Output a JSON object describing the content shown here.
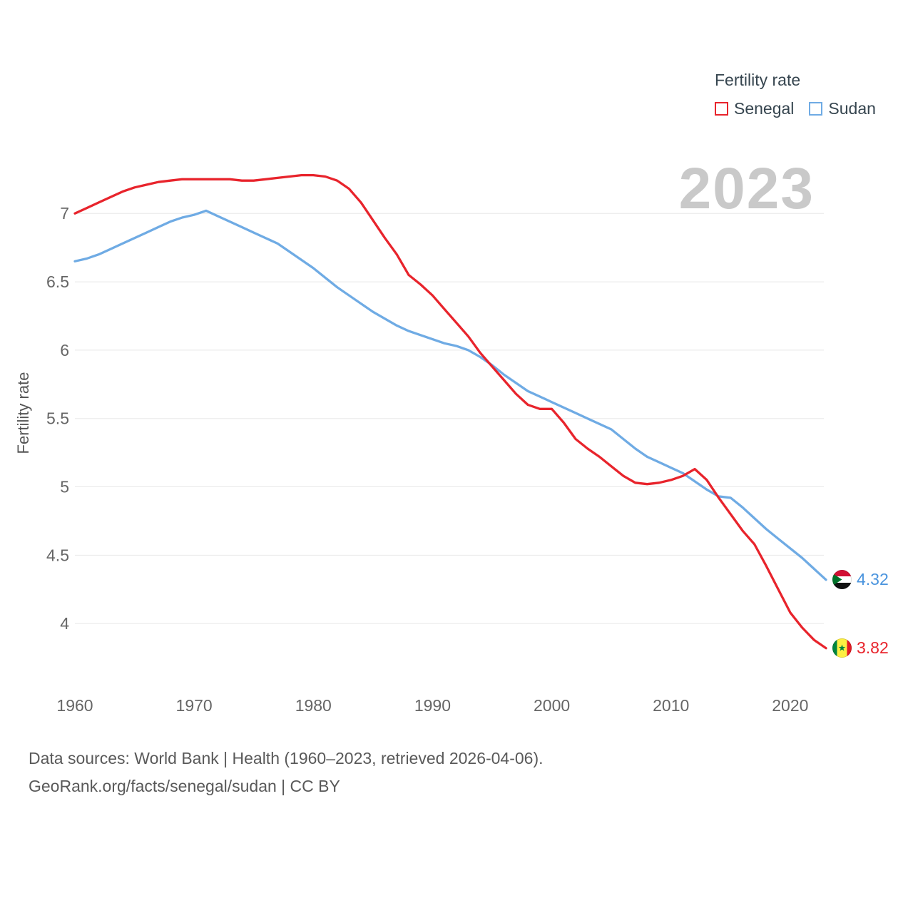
{
  "legend": {
    "title": "Fertility rate",
    "items": [
      {
        "label": "Senegal",
        "color": "#e8242c"
      },
      {
        "label": "Sudan",
        "color": "#6fabe4"
      }
    ]
  },
  "watermark": "2023",
  "axis": {
    "ylabel": "Fertility rate"
  },
  "end_labels": [
    {
      "country": "Sudan",
      "value": "4.32",
      "color": "#4a94de"
    },
    {
      "country": "Senegal",
      "value": "3.82",
      "color": "#e8242c"
    }
  ],
  "footer": {
    "line1": "Data sources: World Bank | Health (1960–2023, retrieved 2026-04-06).",
    "line2": "GeoRank.org/facts/senegal/sudan | CC BY"
  },
  "chart_data": {
    "type": "line",
    "title": "Fertility rate",
    "xlabel": "",
    "ylabel": "Fertility rate",
    "x": [
      1960,
      1961,
      1962,
      1963,
      1964,
      1965,
      1966,
      1967,
      1968,
      1969,
      1970,
      1971,
      1972,
      1973,
      1974,
      1975,
      1976,
      1977,
      1978,
      1979,
      1980,
      1981,
      1982,
      1983,
      1984,
      1985,
      1986,
      1987,
      1988,
      1989,
      1990,
      1991,
      1992,
      1993,
      1994,
      1995,
      1996,
      1997,
      1998,
      1999,
      2000,
      2001,
      2002,
      2003,
      2004,
      2005,
      2006,
      2007,
      2008,
      2009,
      2010,
      2011,
      2012,
      2013,
      2014,
      2015,
      2016,
      2017,
      2018,
      2019,
      2020,
      2021,
      2022,
      2023
    ],
    "series": [
      {
        "name": "Senegal",
        "color": "#e8242c",
        "values": [
          7.0,
          7.04,
          7.08,
          7.12,
          7.16,
          7.19,
          7.21,
          7.23,
          7.24,
          7.25,
          7.25,
          7.25,
          7.25,
          7.25,
          7.24,
          7.24,
          7.25,
          7.26,
          7.27,
          7.28,
          7.28,
          7.27,
          7.24,
          7.18,
          7.08,
          6.95,
          6.82,
          6.7,
          6.55,
          6.48,
          6.4,
          6.3,
          6.2,
          6.1,
          5.98,
          5.88,
          5.78,
          5.68,
          5.6,
          5.57,
          5.57,
          5.47,
          5.35,
          5.28,
          5.22,
          5.15,
          5.08,
          5.03,
          5.02,
          5.03,
          5.05,
          5.08,
          5.13,
          5.05,
          4.92,
          4.8,
          4.68,
          4.58,
          4.42,
          4.25,
          4.08,
          3.97,
          3.88,
          3.82
        ]
      },
      {
        "name": "Sudan",
        "color": "#6fabe4",
        "values": [
          6.65,
          6.67,
          6.7,
          6.74,
          6.78,
          6.82,
          6.86,
          6.9,
          6.94,
          6.97,
          6.99,
          7.02,
          6.98,
          6.94,
          6.9,
          6.86,
          6.82,
          6.78,
          6.72,
          6.66,
          6.6,
          6.53,
          6.46,
          6.4,
          6.34,
          6.28,
          6.23,
          6.18,
          6.14,
          6.11,
          6.08,
          6.05,
          6.03,
          6.0,
          5.95,
          5.89,
          5.82,
          5.76,
          5.7,
          5.66,
          5.62,
          5.58,
          5.54,
          5.5,
          5.46,
          5.42,
          5.35,
          5.28,
          5.22,
          5.18,
          5.14,
          5.1,
          5.04,
          4.98,
          4.93,
          4.92,
          4.85,
          4.77,
          4.69,
          4.62,
          4.55,
          4.48,
          4.4,
          4.32
        ]
      }
    ],
    "xticks": [
      1960,
      1970,
      1980,
      1990,
      2000,
      2010,
      2020
    ],
    "yticks": [
      4,
      4.5,
      5,
      5.5,
      6,
      6.5,
      7
    ],
    "ylim": [
      3.62,
      7.45
    ],
    "grid": true,
    "legend_position": "top-right"
  }
}
